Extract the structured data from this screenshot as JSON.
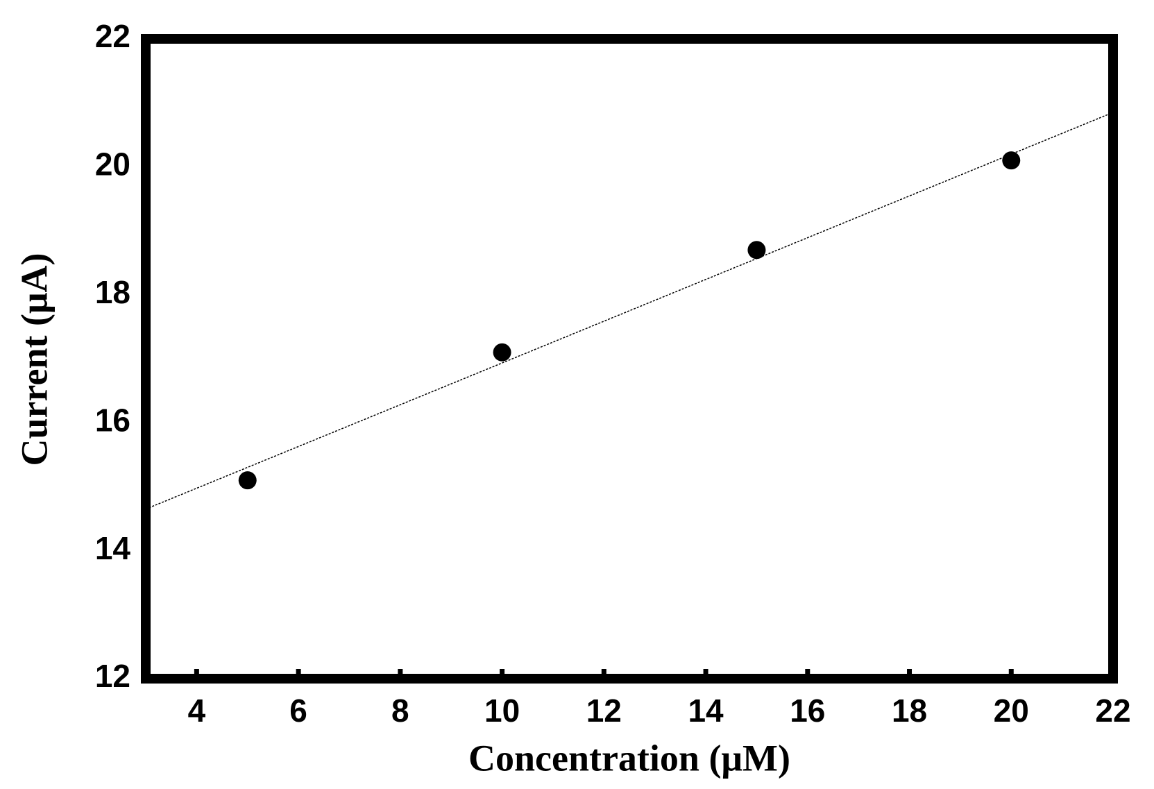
{
  "chart_data": {
    "type": "scatter",
    "x_label": "Concentration (μM)",
    "y_label": "Current (μA)",
    "series": [
      {
        "color": "#000000",
        "x": [
          5,
          10,
          15,
          20
        ],
        "values": [
          15.1,
          17.1,
          18.7,
          20.1
        ]
      }
    ],
    "fit": {
      "color": "#000000",
      "style": "dotted",
      "x": [
        3,
        22
      ],
      "values": [
        14.65,
        20.85
      ]
    },
    "xlim": [
      3,
      22
    ],
    "xticks": [
      4,
      6,
      8,
      10,
      12,
      14,
      16,
      18,
      20,
      22
    ],
    "ylim": [
      12,
      22
    ],
    "yticks": [
      12,
      14,
      16,
      18,
      20,
      22
    ]
  }
}
